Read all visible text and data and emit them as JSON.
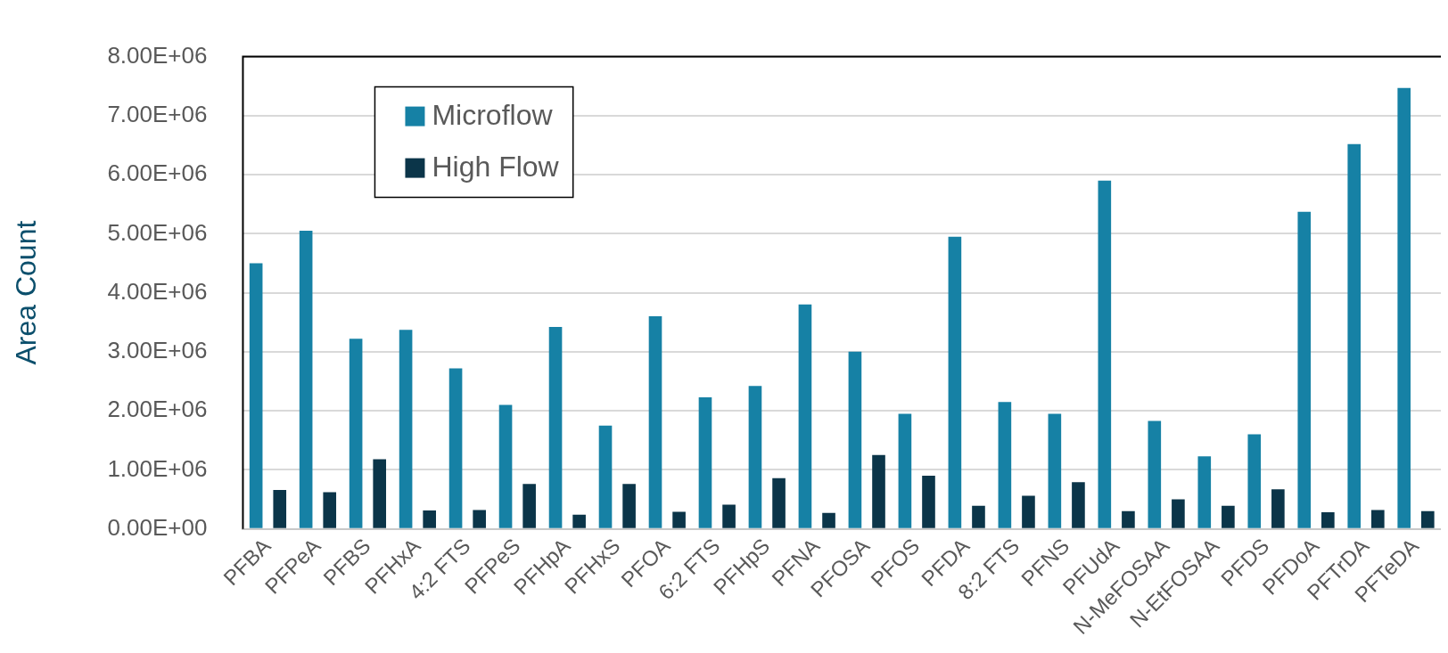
{
  "chart_data": {
    "type": "bar",
    "ylabel": "Area Count",
    "categories": [
      "PFBA",
      "PFPeA",
      "PFBS",
      "PFHxA",
      "4:2 FTS",
      "PFPeS",
      "PFHpA",
      "PFHxS",
      "PFOA",
      "6:2 FTS",
      "PFHpS",
      "PFNA",
      "PFOSA",
      "PFOS",
      "PFDA",
      "8:2 FTS",
      "PFNS",
      "PFUdA",
      "N-MeFOSAA",
      "N-EtFOSAA",
      "PFDS",
      "PFDoA",
      "PFTrDA",
      "PFTeDA"
    ],
    "series": [
      {
        "name": "Microflow",
        "color": "#1681a5",
        "values": [
          4500000,
          5050000,
          3220000,
          3370000,
          2720000,
          2100000,
          3420000,
          1750000,
          3600000,
          2230000,
          2420000,
          3800000,
          3000000,
          1950000,
          4950000,
          2150000,
          1950000,
          5900000,
          1830000,
          1230000,
          1600000,
          5370000,
          6520000,
          7470000
        ]
      },
      {
        "name": "High Flow",
        "color": "#0b3549",
        "values": [
          660000,
          620000,
          1180000,
          310000,
          320000,
          760000,
          240000,
          760000,
          290000,
          410000,
          860000,
          270000,
          1250000,
          900000,
          390000,
          560000,
          790000,
          300000,
          500000,
          390000,
          670000,
          280000,
          320000,
          300000
        ]
      }
    ],
    "ylim": [
      0,
      8000000
    ],
    "yticks": [
      {
        "value": 0,
        "label": "0.00E+00"
      },
      {
        "value": 1000000,
        "label": "1.00E+06"
      },
      {
        "value": 2000000,
        "label": "2.00E+06"
      },
      {
        "value": 3000000,
        "label": "3.00E+06"
      },
      {
        "value": 4000000,
        "label": "4.00E+06"
      },
      {
        "value": 5000000,
        "label": "5.00E+06"
      },
      {
        "value": 6000000,
        "label": "6.00E+06"
      },
      {
        "value": 7000000,
        "label": "7.00E+06"
      },
      {
        "value": 8000000,
        "label": "8.00E+06"
      }
    ],
    "grid": "y",
    "legend": "top left"
  }
}
